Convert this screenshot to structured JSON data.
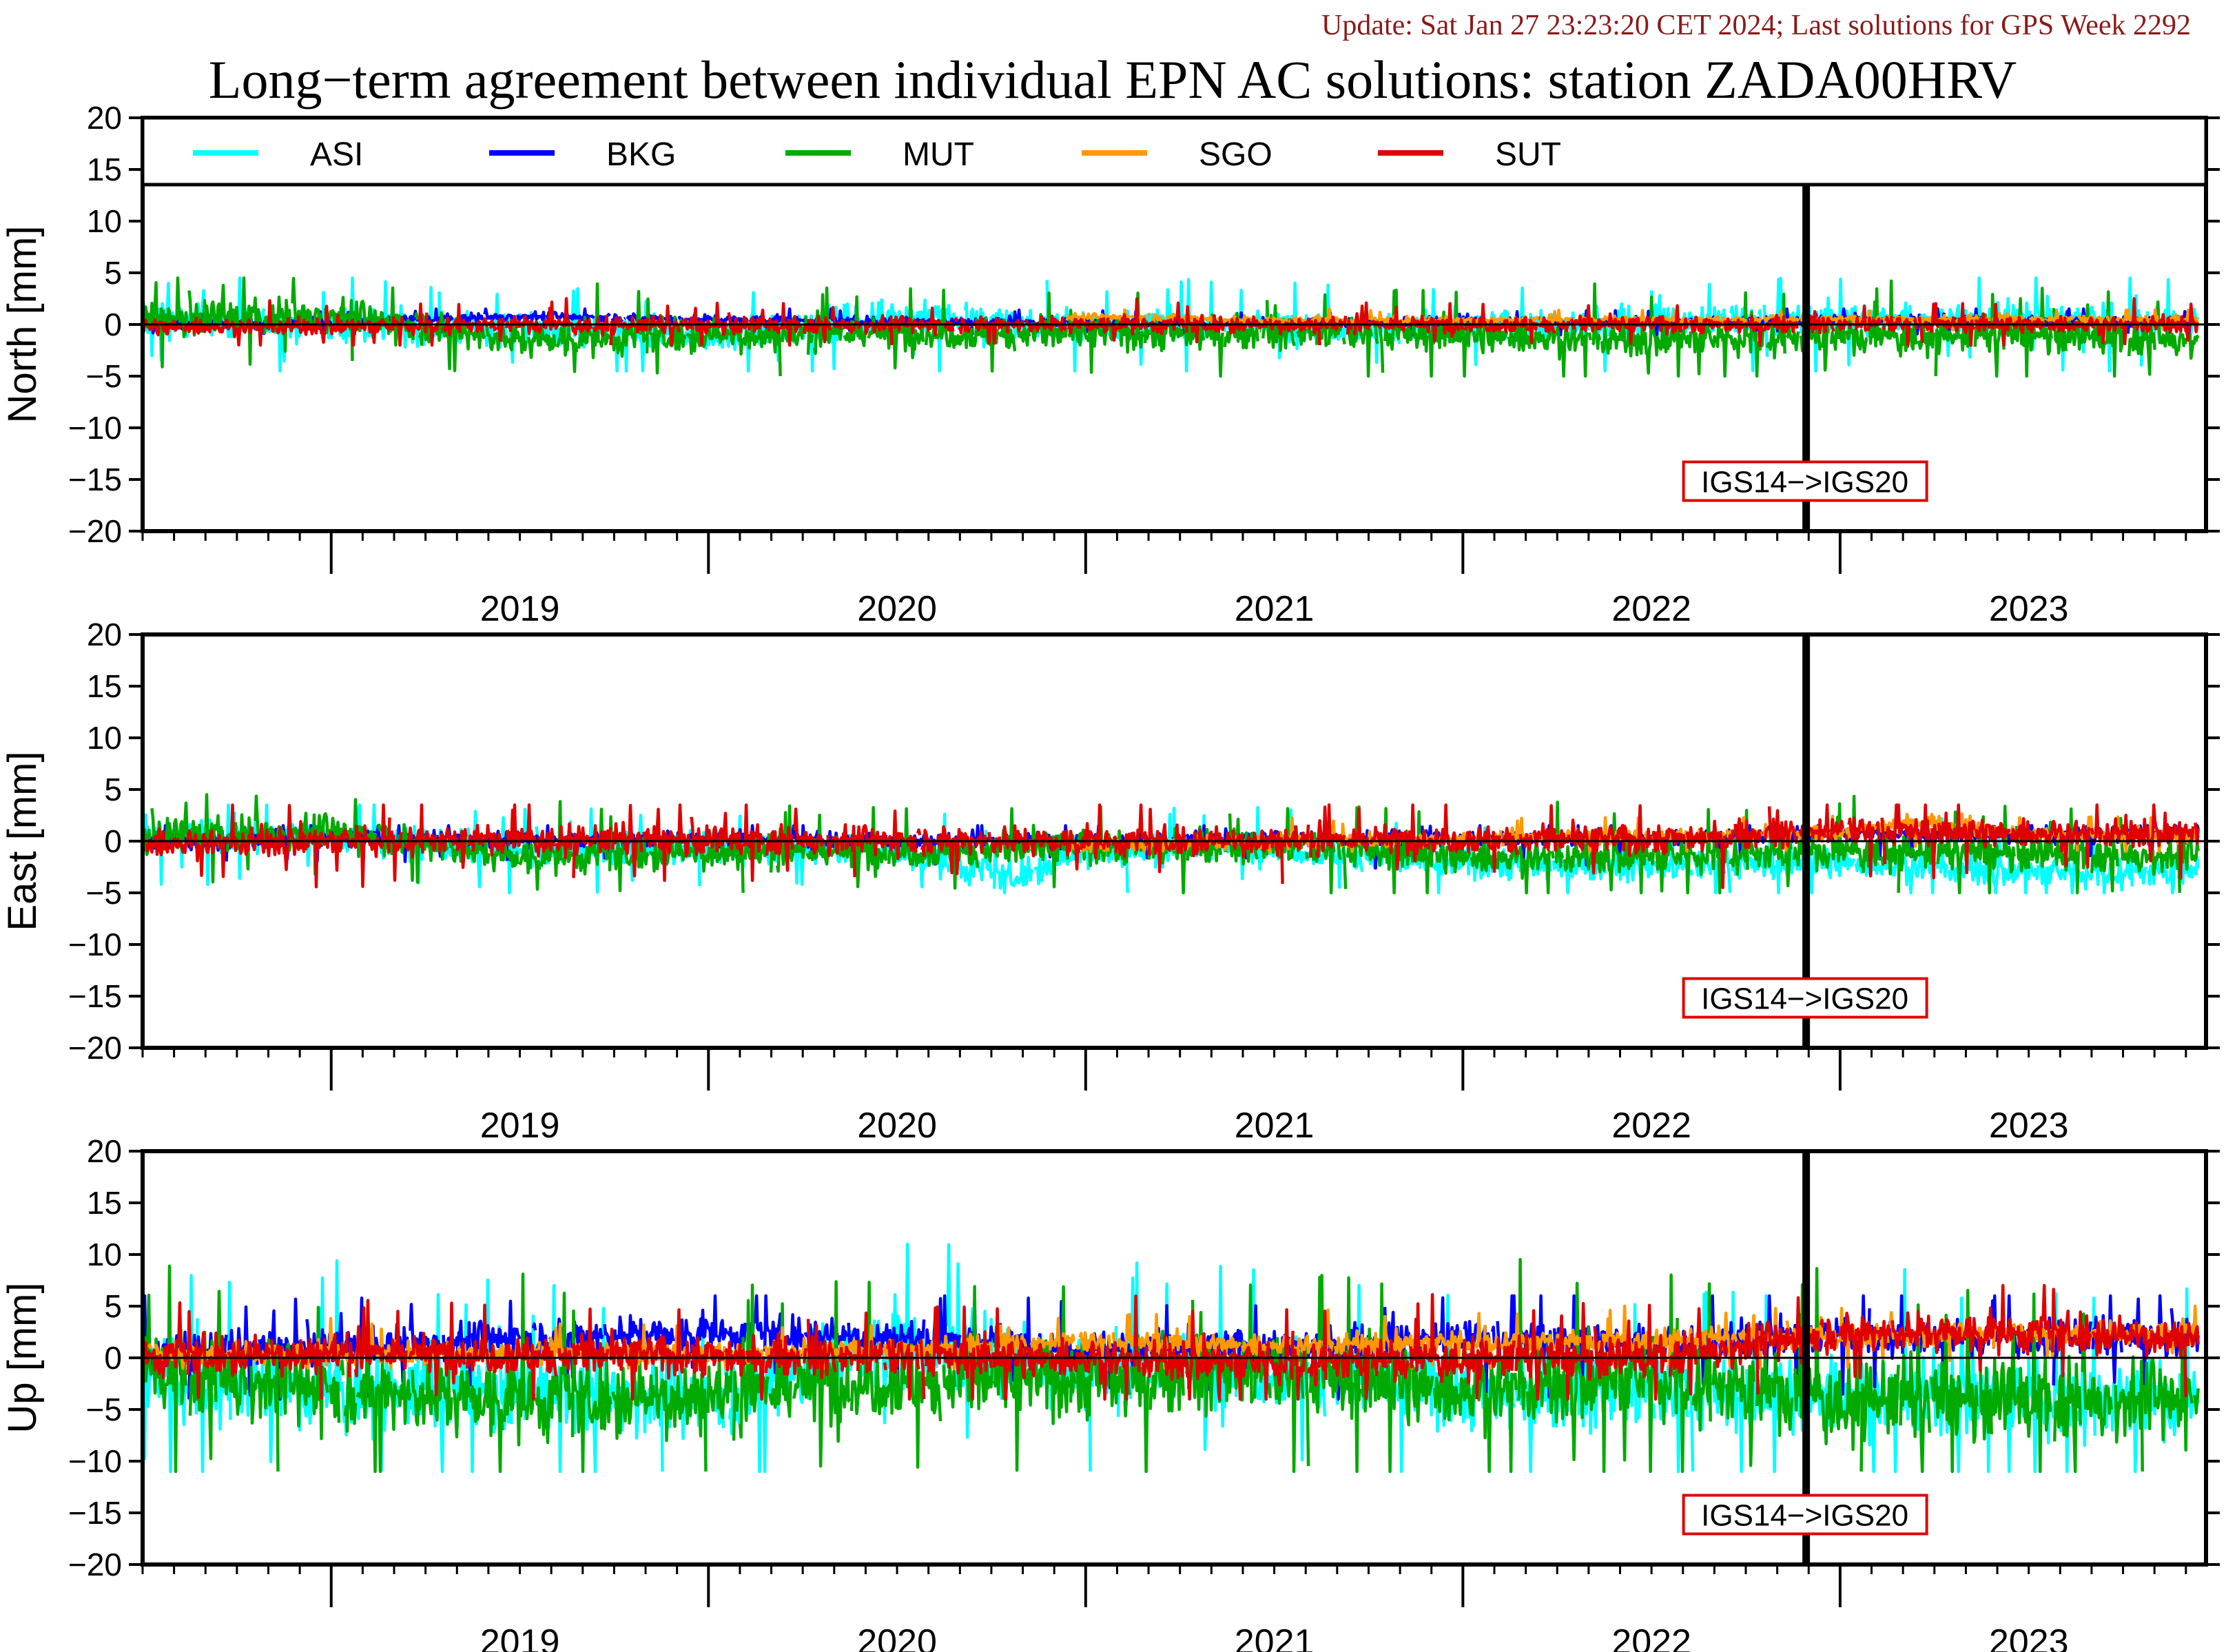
{
  "header": {
    "update_text": "Update: Sat Jan 27 23:23:20 CET 2024; Last solutions for GPS Week 2292",
    "title": "Long−term agreement between individual EPN AC solutions: station ZADA00HRV"
  },
  "colors": {
    "ASI": "#00ffff",
    "BKG": "#0000ff",
    "MUT": "#00aa00",
    "SGO": "#ff9900",
    "SUT": "#e00000",
    "update_text": "#8b1a1a",
    "annotation_box": "#e00000"
  },
  "legend": {
    "placement": "top inside North panel",
    "entries": [
      "ASI",
      "BKG",
      "MUT",
      "SGO",
      "SUT"
    ]
  },
  "chart_data": [
    {
      "type": "line",
      "ylabel": "North [mm]",
      "ylim": [
        -20,
        20
      ],
      "yticks": [
        "20",
        "15",
        "10",
        "5",
        "0",
        "−5",
        "−10",
        "−15",
        "−20"
      ],
      "xlim": [
        2018.5,
        2023.97
      ],
      "xtick_labels": [
        "2019",
        "2020",
        "2021",
        "2022",
        "2023"
      ],
      "zero_line": true,
      "reference_frame_change": {
        "x": 2022.91,
        "label": "IGS14−>IGS20"
      },
      "series_summary": [
        {
          "name": "ASI",
          "x": [
            2018.5,
            2019.0,
            2019.5,
            2020.0,
            2020.5,
            2021.0,
            2021.5,
            2022.0,
            2022.5,
            2023.0,
            2023.5,
            2023.95
          ],
          "y": [
            0.5,
            0.0,
            -0.5,
            -1.0,
            0.8,
            -0.2,
            0.0,
            -0.3,
            0.3,
            0.5,
            0.6,
            0.3
          ],
          "range": [
            -4.5,
            4.5
          ]
        },
        {
          "name": "BKG",
          "x": [
            2018.5,
            2019.0,
            2019.5,
            2020.0,
            2020.5,
            2021.0,
            2021.5,
            2022.0,
            2022.5,
            2023.0,
            2023.5,
            2023.95
          ],
          "y": [
            0.0,
            0.2,
            0.8,
            0.5,
            0.3,
            0.2,
            0.1,
            0.3,
            0.2,
            0.5,
            0.4,
            0.2
          ],
          "range": [
            -1,
            1.5
          ]
        },
        {
          "name": "MUT",
          "x": [
            2018.5,
            2019.0,
            2019.5,
            2020.0,
            2020.5,
            2021.0,
            2021.5,
            2022.0,
            2022.5,
            2023.0,
            2023.5,
            2023.95
          ],
          "y": [
            0.5,
            1.0,
            -1.5,
            -1.0,
            -0.8,
            -0.8,
            -0.8,
            -1.0,
            -1.5,
            -1.2,
            -1.0,
            -1.5
          ],
          "range": [
            -5,
            4.5
          ]
        },
        {
          "name": "SGO",
          "x": [
            2020.95,
            2021.2,
            2021.45,
            2023.0,
            2023.5,
            2023.95
          ],
          "y": [
            0.7,
            0.7,
            0.4,
            0.5,
            0.5,
            0.5
          ],
          "range": [
            -0.5,
            1.5
          ]
        },
        {
          "name": "SUT",
          "x": [
            2018.5,
            2019.0,
            2019.5,
            2020.0,
            2020.5,
            2021.0,
            2021.5,
            2022.0,
            2022.5,
            2023.0,
            2023.5,
            2023.95
          ],
          "y": [
            -0.2,
            -0.2,
            0.0,
            -0.1,
            0.0,
            0.0,
            0.0,
            0.0,
            0.0,
            0.0,
            0.0,
            0.0
          ],
          "range": [
            -2,
            2.5
          ]
        }
      ]
    },
    {
      "type": "line",
      "ylabel": "East [mm]",
      "ylim": [
        -20,
        20
      ],
      "yticks": [
        "20",
        "15",
        "10",
        "5",
        "0",
        "−5",
        "−10",
        "−15",
        "−20"
      ],
      "xlim": [
        2018.5,
        2023.97
      ],
      "xtick_labels": [
        "2019",
        "2020",
        "2021",
        "2022",
        "2023"
      ],
      "zero_line": true,
      "reference_frame_change": {
        "x": 2022.91,
        "label": "IGS14−>IGS20"
      },
      "series_summary": [
        {
          "name": "ASI",
          "x": [
            2018.5,
            2019.0,
            2019.5,
            2020.0,
            2020.5,
            2020.8,
            2021.0,
            2021.5,
            2021.9,
            2022.5,
            2023.0,
            2023.5,
            2023.95
          ],
          "y": [
            0.5,
            0.5,
            -1.0,
            -0.5,
            -1.0,
            -3.5,
            -1.0,
            -0.5,
            -2.0,
            -2.5,
            -2.0,
            -3.0,
            -3.0
          ],
          "range": [
            -5,
            3.5
          ]
        },
        {
          "name": "BKG",
          "x": [
            2018.5,
            2019.0,
            2019.5,
            2020.0,
            2020.5,
            2021.0,
            2021.5,
            2022.0,
            2022.5,
            2023.0,
            2023.5,
            2023.95
          ],
          "y": [
            0.0,
            0.3,
            0.1,
            0.2,
            0.0,
            0.1,
            0.2,
            0.2,
            0.2,
            0.8,
            0.6,
            0.5
          ],
          "range": [
            -3,
            1.5
          ]
        },
        {
          "name": "MUT",
          "x": [
            2018.5,
            2019.0,
            2019.5,
            2020.0,
            2020.5,
            2021.0,
            2021.5,
            2022.0,
            2022.5,
            2023.0,
            2023.5,
            2023.95
          ],
          "y": [
            0.5,
            1.0,
            -1.5,
            -1.0,
            -1.0,
            -0.5,
            -0.5,
            -1.5,
            -1.5,
            -1.0,
            -1.2,
            -1.5
          ],
          "range": [
            -5,
            4.5
          ]
        },
        {
          "name": "SGO",
          "x": [
            2020.95,
            2021.2,
            2021.45,
            2023.0,
            2023.2,
            2023.5,
            2023.95
          ],
          "y": [
            -0.5,
            -0.3,
            0.0,
            0.8,
            2.0,
            0.6,
            0.5
          ],
          "range": [
            -1,
            3
          ]
        },
        {
          "name": "SUT",
          "x": [
            2018.5,
            2019.0,
            2019.5,
            2020.0,
            2020.5,
            2021.0,
            2021.5,
            2022.0,
            2022.5,
            2023.0,
            2023.5,
            2023.95
          ],
          "y": [
            -0.2,
            0.0,
            0.2,
            0.1,
            0.1,
            0.0,
            0.1,
            0.2,
            0.2,
            1.0,
            0.8,
            0.8
          ],
          "range": [
            -4.5,
            3.5
          ]
        }
      ]
    },
    {
      "type": "line",
      "ylabel": "Up [mm]",
      "ylim": [
        -20,
        20
      ],
      "yticks": [
        "20",
        "15",
        "10",
        "5",
        "0",
        "−5",
        "−10",
        "−15",
        "−20"
      ],
      "xlim": [
        2018.5,
        2023.97
      ],
      "xtick_labels": [
        "2019",
        "2020",
        "2021",
        "2022",
        "2023"
      ],
      "zero_line": true,
      "reference_frame_change": {
        "x": 2022.91,
        "label": "IGS14−>IGS20"
      },
      "series_summary": [
        {
          "name": "ASI",
          "x": [
            2018.5,
            2019.0,
            2019.5,
            2020.0,
            2020.5,
            2021.0,
            2021.5,
            2022.0,
            2022.5,
            2023.0,
            2023.5,
            2023.95
          ],
          "y": [
            -2.0,
            -3.0,
            -3.0,
            -4.0,
            1.5,
            -1.0,
            -1.0,
            -3.0,
            -3.5,
            -3.5,
            -4.0,
            -4.0
          ],
          "range": [
            -11,
            11
          ]
        },
        {
          "name": "BKG",
          "x": [
            2018.5,
            2019.0,
            2019.5,
            2020.0,
            2020.5,
            2021.0,
            2021.5,
            2022.0,
            2022.5,
            2023.0,
            2023.5,
            2023.95
          ],
          "y": [
            0.5,
            1.0,
            2.0,
            2.5,
            2.0,
            1.0,
            1.0,
            2.0,
            1.5,
            2.0,
            2.0,
            2.0
          ],
          "range": [
            -4,
            6
          ]
        },
        {
          "name": "MUT",
          "x": [
            2018.5,
            2019.0,
            2019.5,
            2020.0,
            2020.5,
            2021.0,
            2021.5,
            2022.0,
            2022.5,
            2023.0,
            2023.5,
            2023.95
          ],
          "y": [
            -1.0,
            -3.0,
            -4.0,
            -3.5,
            -2.0,
            -2.0,
            -1.5,
            -3.0,
            -2.0,
            -4.0,
            -4.0,
            -4.0
          ],
          "range": [
            -11,
            11
          ]
        },
        {
          "name": "SGO",
          "x": [
            2018.5,
            2019.5,
            2020.3,
            2020.95,
            2021.2,
            2021.45,
            2023.0,
            2023.5,
            2023.95
          ],
          "y": [
            0.5,
            0.5,
            0.5,
            1.5,
            1.5,
            1.2,
            2.0,
            2.5,
            2.5
          ],
          "range": [
            -1,
            5
          ]
        },
        {
          "name": "SUT",
          "x": [
            2018.5,
            2019.0,
            2019.5,
            2020.0,
            2020.5,
            2021.0,
            2021.5,
            2022.0,
            2022.5,
            2023.0,
            2023.5,
            2023.95
          ],
          "y": [
            0.2,
            0.5,
            0.3,
            0.2,
            0.0,
            0.0,
            -0.5,
            0.0,
            0.0,
            2.5,
            2.5,
            2.0
          ],
          "range": [
            -4,
            7
          ]
        }
      ]
    }
  ]
}
